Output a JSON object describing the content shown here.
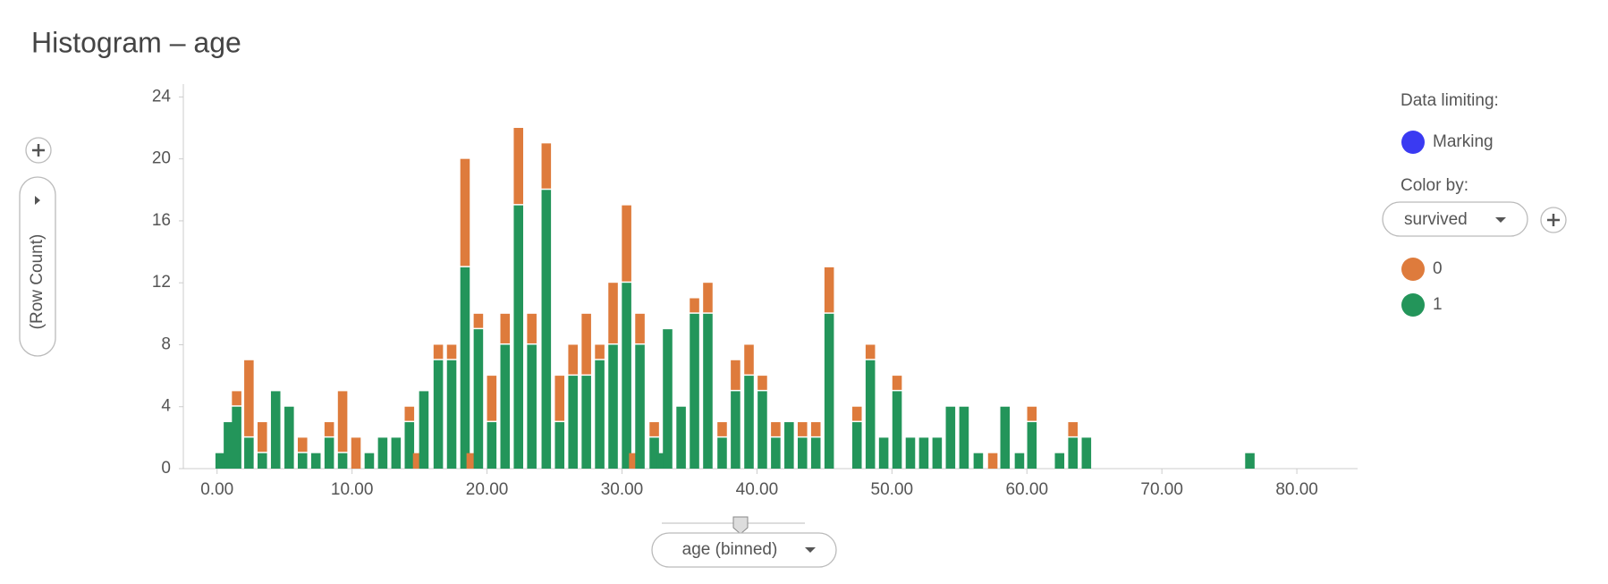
{
  "chart_data": {
    "type": "stacked_histogram",
    "title": "Histogram – age",
    "y_label": "(Row Count)",
    "x_label": "age (binned)",
    "legend": {
      "data_limiting": "Data limiting:",
      "marking": "Marking",
      "color_by": "Color by:",
      "color_column": "survived"
    },
    "x": [
      0.23,
      0.84,
      1.45,
      2.36,
      3.35,
      4.34,
      5.34,
      6.33,
      7.32,
      8.31,
      9.3,
      10.29,
      11.28,
      12.27,
      13.26,
      14.25,
      14.86,
      15.32,
      16.39,
      17.38,
      18.37,
      18.83,
      19.36,
      20.35,
      21.34,
      22.33,
      23.32,
      24.39,
      25.38,
      26.37,
      27.36,
      28.35,
      29.34,
      30.34,
      30.87,
      31.33,
      32.39,
      32.93,
      33.38,
      34.38,
      35.37,
      36.36,
      37.42,
      38.41,
      39.41,
      40.4,
      41.39,
      42.38,
      43.37,
      44.36,
      45.35,
      47.41,
      48.4,
      49.39,
      50.38,
      51.37,
      52.36,
      53.35,
      54.34,
      55.34,
      56.4,
      57.47,
      58.38,
      59.45,
      60.37,
      62.42,
      63.41,
      64.41,
      76.52
    ],
    "series": [
      {
        "name": "1",
        "color": "#23955a",
        "values": [
          1,
          3,
          4,
          2,
          1,
          5,
          4,
          1,
          1,
          2,
          1,
          0,
          1,
          2,
          2,
          3,
          0,
          5,
          7,
          7,
          13,
          0,
          9,
          3,
          8,
          17,
          8,
          18,
          3,
          6,
          6,
          7,
          8,
          12,
          0,
          8,
          2,
          1,
          9,
          4,
          10,
          10,
          2,
          5,
          6,
          5,
          2,
          3,
          2,
          2,
          10,
          3,
          7,
          2,
          5,
          2,
          2,
          2,
          4,
          4,
          1,
          0,
          4,
          1,
          3,
          1,
          2,
          2,
          1
        ]
      },
      {
        "name": "0",
        "color": "#de7b3c",
        "values": [
          0,
          0,
          1,
          5,
          2,
          0,
          0,
          1,
          0,
          1,
          4,
          2,
          0,
          0,
          0,
          1,
          1,
          0,
          1,
          1,
          7,
          1,
          1,
          3,
          2,
          5,
          2,
          3,
          3,
          2,
          4,
          1,
          4,
          5,
          1,
          2,
          1,
          0,
          0,
          0,
          1,
          2,
          1,
          2,
          2,
          1,
          1,
          0,
          1,
          1,
          3,
          1,
          1,
          0,
          1,
          0,
          0,
          0,
          0,
          0,
          0,
          1,
          0,
          0,
          1,
          0,
          1,
          0,
          0
        ]
      }
    ],
    "xlim": [
      -2.5,
      84.5
    ],
    "xticks": [
      {
        "value": 0,
        "label": "0.00"
      },
      {
        "value": 10,
        "label": "10.00"
      },
      {
        "value": 20,
        "label": "20.00"
      },
      {
        "value": 30,
        "label": "30.00"
      },
      {
        "value": 40,
        "label": "40.00"
      },
      {
        "value": 50,
        "label": "50.00"
      },
      {
        "value": 60,
        "label": "60.00"
      },
      {
        "value": 70,
        "label": "70.00"
      },
      {
        "value": 80,
        "label": "80.00"
      }
    ],
    "ylim": [
      0,
      24.6
    ],
    "yticks": [
      0,
      4,
      8,
      12,
      16,
      20,
      24
    ]
  }
}
